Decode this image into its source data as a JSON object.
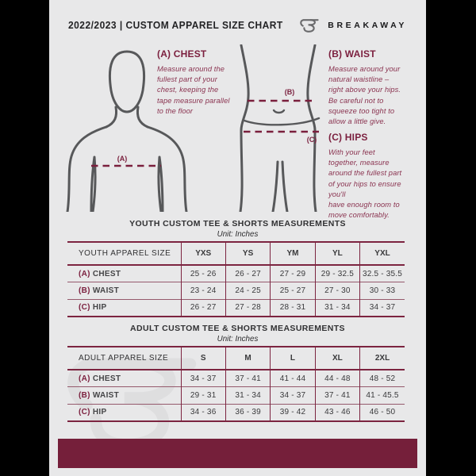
{
  "header": {
    "title": "2022/2023  |  CUSTOM APPAREL SIZE CHART",
    "brand": "BREAKAWAY"
  },
  "measurements": {
    "chest": {
      "label": "(A) CHEST",
      "description": "Measure around the\nfullest part of your\nchest, keeping the\ntape measure parallel\nto the floor"
    },
    "waist": {
      "label": "(B) WAIST",
      "description": "Measure around your\nnatural waistline –\nright above your hips.\nBe careful not to\nsqueeze too tight to\nallow a little give."
    },
    "hips": {
      "label": "(C) HIPS",
      "description": "With your feet\ntogether, measure\naround the fullest part\nof your hips to ensure\nyou'll\nhave enough room to\nmove comfortably."
    }
  },
  "diagram": {
    "chest_marker": "(A)",
    "waist_marker": "(B)",
    "hips_marker": "(C)"
  },
  "youth_table": {
    "title": "YOUTH CUSTOM TEE & SHORTS MEASUREMENTS",
    "unit": "Unit: Inches",
    "header": [
      "YOUTH APPAREL SIZE",
      "YXS",
      "YS",
      "YM",
      "YL",
      "YXL"
    ],
    "rows": [
      {
        "prefix": "(A)",
        "label": "CHEST",
        "values": [
          "25 - 26",
          "26 - 27",
          "27 - 29",
          "29 - 32.5",
          "32.5 - 35.5"
        ]
      },
      {
        "prefix": "(B)",
        "label": "WAIST",
        "values": [
          "23 - 24",
          "24 - 25",
          "25 - 27",
          "27 - 30",
          "30 - 33"
        ]
      },
      {
        "prefix": "(C)",
        "label": "HIP",
        "values": [
          "26 - 27",
          "27 - 28",
          "28 - 31",
          "31 - 34",
          "34 - 37"
        ]
      }
    ]
  },
  "adult_table": {
    "title": "ADULT CUSTOM TEE & SHORTS MEASUREMENTS",
    "unit": "Unit: Inches",
    "header": [
      "ADULT APPAREL SIZE",
      "S",
      "M",
      "L",
      "XL",
      "2XL"
    ],
    "rows": [
      {
        "prefix": "(A)",
        "label": "CHEST",
        "values": [
          "34 - 37",
          "37 - 41",
          "41 - 44",
          "44 - 48",
          "48 - 52"
        ]
      },
      {
        "prefix": "(B)",
        "label": "WAIST",
        "values": [
          "29 - 31",
          "31 - 34",
          "34 - 37",
          "37 - 41",
          "41 - 45.5"
        ]
      },
      {
        "prefix": "(C)",
        "label": "HIP",
        "values": [
          "34 - 36",
          "36 - 39",
          "39 - 42",
          "43 - 46",
          "46 - 50"
        ]
      }
    ]
  },
  "colors": {
    "maroon": "#751f3a",
    "heading_maroon": "#7b1f3e",
    "table_line": "#7c2440",
    "card_bg": "#e8e8e9",
    "figure_stroke": "#57585a"
  }
}
